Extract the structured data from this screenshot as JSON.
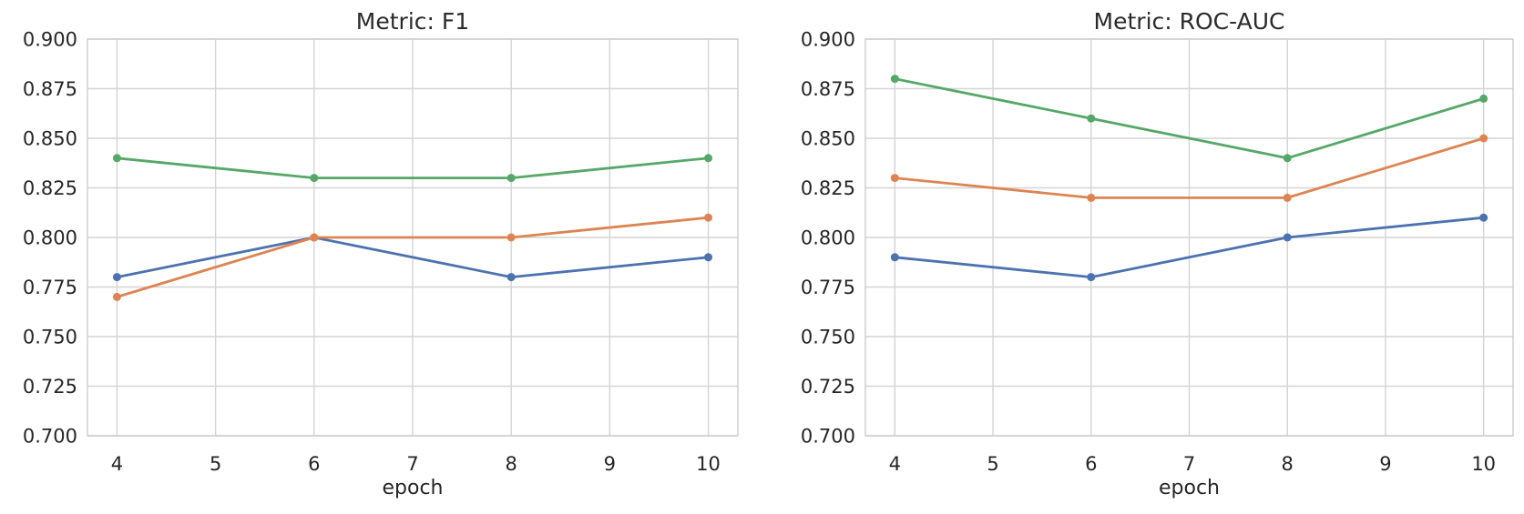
{
  "figure": {
    "background_color": "#ffffff"
  },
  "style": {
    "grid_color": "#d4d4d4",
    "spine_color": "#cccccc",
    "text_color": "#262626",
    "title_color": "#2b2b2b",
    "palette": {
      "blue": "#4C72B0",
      "orange": "#DD8452",
      "green": "#55A868"
    }
  },
  "chart_data": [
    {
      "type": "line",
      "title": "Metric: F1",
      "xlabel": "epoch",
      "ylabel": "",
      "grid": true,
      "legend": "none",
      "x": [
        4,
        6,
        8,
        10
      ],
      "xlim": [
        3.7,
        10.3
      ],
      "ylim": [
        0.7,
        0.9
      ],
      "xticks": [
        4,
        5,
        6,
        7,
        8,
        9,
        10
      ],
      "xticklabels": [
        "4",
        "5",
        "6",
        "7",
        "8",
        "9",
        "10"
      ],
      "yticks": [
        0.7,
        0.725,
        0.75,
        0.775,
        0.8,
        0.825,
        0.85,
        0.875,
        0.9
      ],
      "yticklabels": [
        "0.700",
        "0.725",
        "0.750",
        "0.775",
        "0.800",
        "0.825",
        "0.850",
        "0.875",
        "0.900"
      ],
      "series": [
        {
          "name": "blue-series",
          "color": "#4C72B0",
          "values": [
            0.78,
            0.8,
            0.78,
            0.79
          ]
        },
        {
          "name": "orange-series",
          "color": "#DD8452",
          "values": [
            0.77,
            0.8,
            0.8,
            0.81
          ]
        },
        {
          "name": "green-series",
          "color": "#55A868",
          "values": [
            0.84,
            0.83,
            0.83,
            0.84
          ]
        }
      ]
    },
    {
      "type": "line",
      "title": "Metric: ROC-AUC",
      "xlabel": "epoch",
      "ylabel": "",
      "grid": true,
      "legend": "none",
      "x": [
        4,
        6,
        8,
        10
      ],
      "xlim": [
        3.7,
        10.3
      ],
      "ylim": [
        0.7,
        0.9
      ],
      "xticks": [
        4,
        5,
        6,
        7,
        8,
        9,
        10
      ],
      "xticklabels": [
        "4",
        "5",
        "6",
        "7",
        "8",
        "9",
        "10"
      ],
      "yticks": [
        0.7,
        0.725,
        0.75,
        0.775,
        0.8,
        0.825,
        0.85,
        0.875,
        0.9
      ],
      "yticklabels": [
        "0.700",
        "0.725",
        "0.750",
        "0.775",
        "0.800",
        "0.825",
        "0.850",
        "0.875",
        "0.900"
      ],
      "series": [
        {
          "name": "blue-series",
          "color": "#4C72B0",
          "values": [
            0.79,
            0.78,
            0.8,
            0.81
          ]
        },
        {
          "name": "orange-series",
          "color": "#DD8452",
          "values": [
            0.83,
            0.82,
            0.82,
            0.85
          ]
        },
        {
          "name": "green-series",
          "color": "#55A868",
          "values": [
            0.88,
            0.86,
            0.84,
            0.87
          ]
        }
      ]
    }
  ]
}
